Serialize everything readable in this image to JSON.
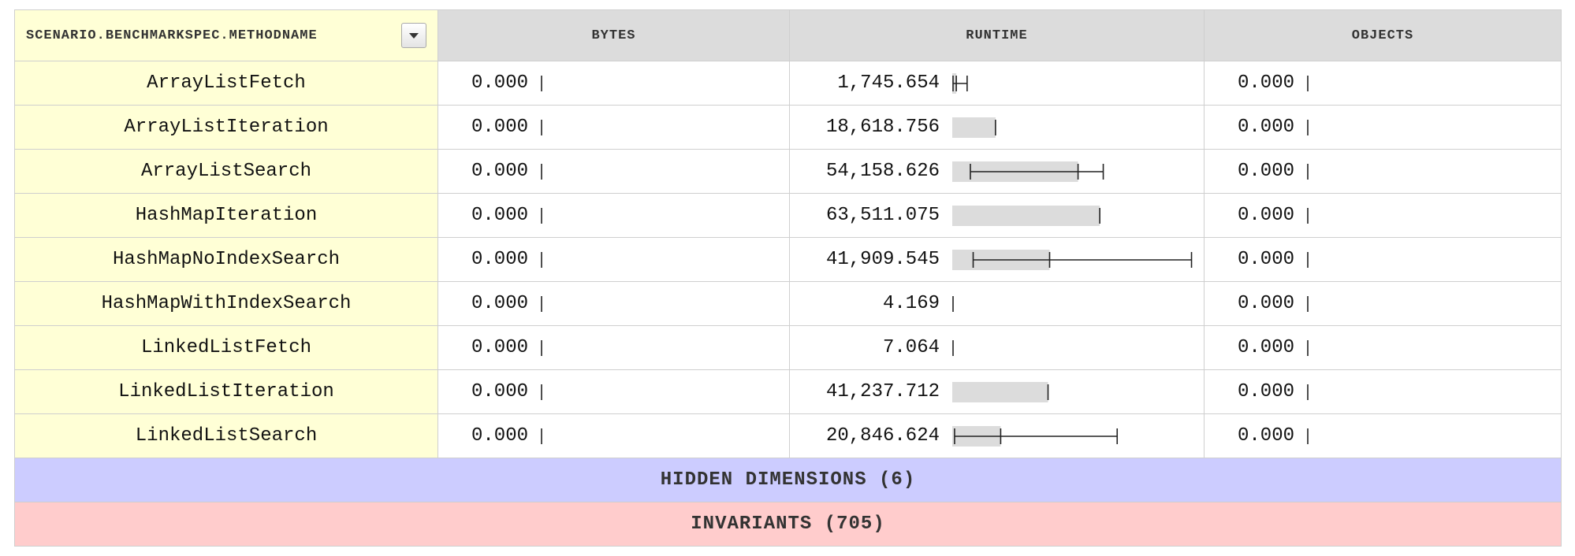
{
  "header": {
    "dimension": "SCENARIO.BENCHMARKSPEC.METHODNAME",
    "columns": [
      "BYTES",
      "RUNTIME",
      "OBJECTS"
    ]
  },
  "rows": [
    {
      "name": "ArrayListFetch",
      "bytes": "0.000",
      "runtime": "1,745.654",
      "objects": "0.000"
    },
    {
      "name": "ArrayListIteration",
      "bytes": "0.000",
      "runtime": "18,618.756",
      "objects": "0.000"
    },
    {
      "name": "ArrayListSearch",
      "bytes": "0.000",
      "runtime": "54,158.626",
      "objects": "0.000"
    },
    {
      "name": "HashMapIteration",
      "bytes": "0.000",
      "runtime": "63,511.075",
      "objects": "0.000"
    },
    {
      "name": "HashMapNoIndexSearch",
      "bytes": "0.000",
      "runtime": "41,909.545",
      "objects": "0.000"
    },
    {
      "name": "HashMapWithIndexSearch",
      "bytes": "0.000",
      "runtime": "4.169",
      "objects": "0.000"
    },
    {
      "name": "LinkedListFetch",
      "bytes": "0.000",
      "runtime": "7.064",
      "objects": "0.000"
    },
    {
      "name": "LinkedListIteration",
      "bytes": "0.000",
      "runtime": "41,237.712",
      "objects": "0.000"
    },
    {
      "name": "LinkedListSearch",
      "bytes": "0.000",
      "runtime": "20,846.624",
      "objects": "0.000"
    }
  ],
  "runtime_spread": [
    {
      "min": 340,
      "max": 6400
    },
    {
      "min": 18450,
      "max": 18780
    },
    {
      "min": 7800,
      "max": 65000
    },
    {
      "min": 63200,
      "max": 63750
    },
    {
      "min": 9000,
      "max": 103000
    },
    {
      "min": 4,
      "max": 4
    },
    {
      "min": 7,
      "max": 7
    },
    {
      "min": 40950,
      "max": 41500
    },
    {
      "min": 1000,
      "max": 71000
    }
  ],
  "footer": {
    "hidden_dimensions": "HIDDEN DIMENSIONS (6)",
    "invariants": "INVARIANTS (705)"
  },
  "colors": {
    "dimension_bg": "#ffffd6",
    "header_bg": "#dcdcdc",
    "bar_fill": "#dcdcdc",
    "hidden_bg": "#ccccff",
    "invariants_bg": "#ffcccc"
  }
}
